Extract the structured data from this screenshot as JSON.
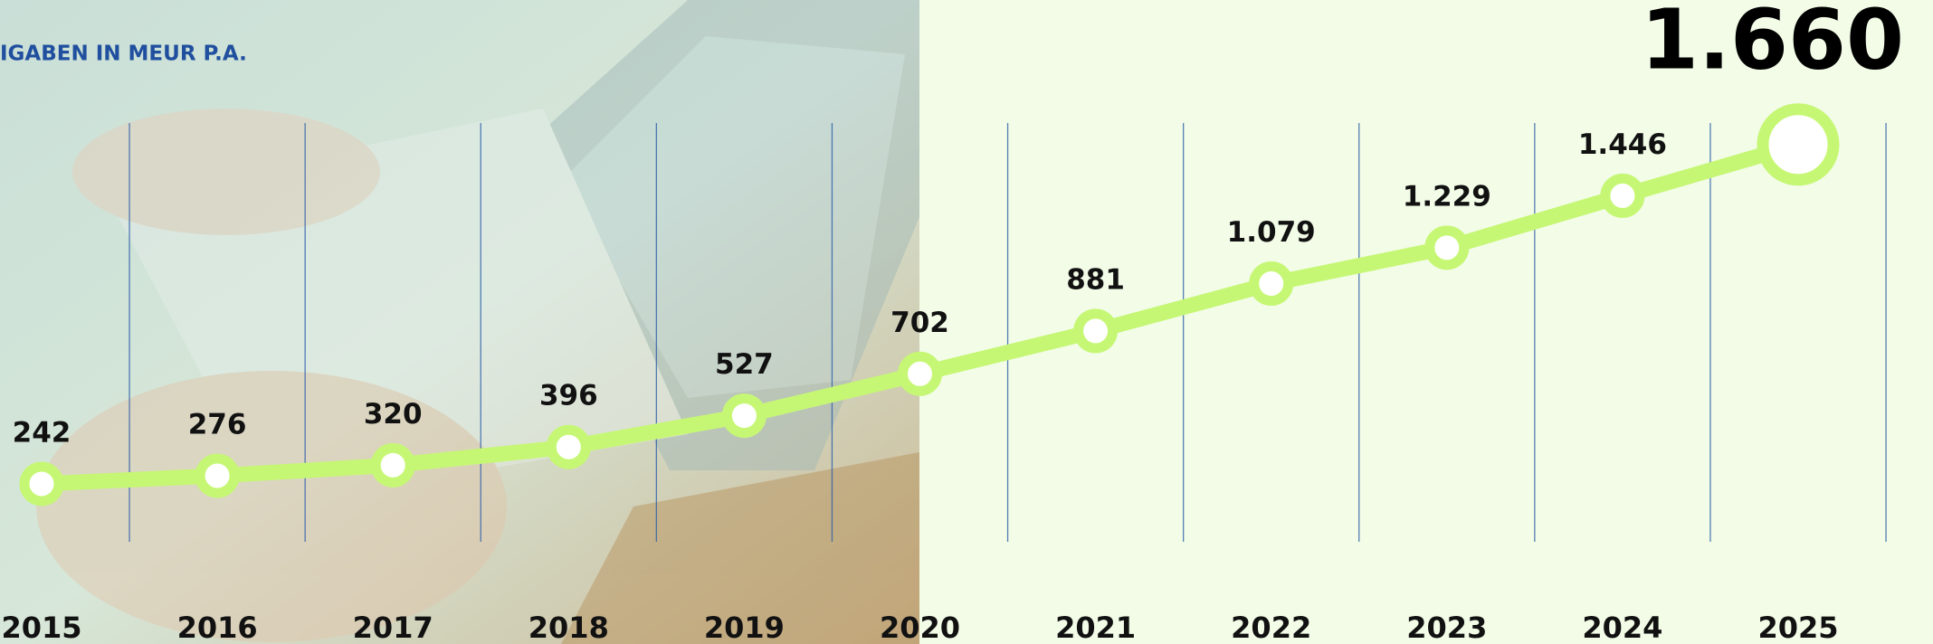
{
  "chart_data": {
    "type": "line",
    "title": "IGABEN IN MEUR P.A.",
    "categories": [
      "2015",
      "2016",
      "2017",
      "2018",
      "2019",
      "2020",
      "2021",
      "2022",
      "2023",
      "2024",
      "2025"
    ],
    "values": [
      242,
      276,
      320,
      396,
      527,
      702,
      881,
      1079,
      1229,
      1446,
      1660
    ],
    "value_labels": [
      "242",
      "276",
      "320",
      "396",
      "527",
      "702",
      "881",
      "1.079",
      "1.229",
      "1.446",
      "1.660"
    ],
    "color": "#c6f774",
    "ylim": [
      0,
      1750
    ]
  }
}
